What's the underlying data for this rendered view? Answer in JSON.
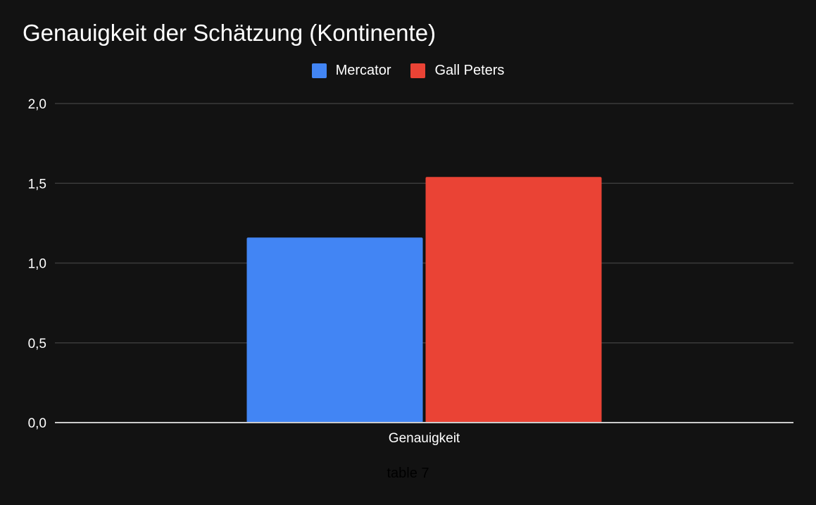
{
  "colors": {
    "background": "#121212",
    "gridline": "#3a3a3a",
    "axis": "#cccccc",
    "text": "#ffffff",
    "caption": "#000000"
  },
  "caption": "table 7",
  "chart_data": {
    "type": "bar",
    "title": "Genauigkeit der Schätzung (Kontinente)",
    "categories": [
      "Genauigkeit"
    ],
    "series": [
      {
        "name": "Mercator",
        "values": [
          1.16
        ],
        "color": "#4285f4"
      },
      {
        "name": "Gall Peters",
        "values": [
          1.54
        ],
        "color": "#ea4335"
      }
    ],
    "xlabel": "",
    "ylabel": "",
    "ylim": [
      0,
      2
    ],
    "yticks": [
      "0,0",
      "0,5",
      "1,0",
      "1,5",
      "2,0"
    ],
    "ytick_values": [
      0,
      0.5,
      1.0,
      1.5,
      2.0
    ],
    "grid": true,
    "legend_position": "top"
  }
}
